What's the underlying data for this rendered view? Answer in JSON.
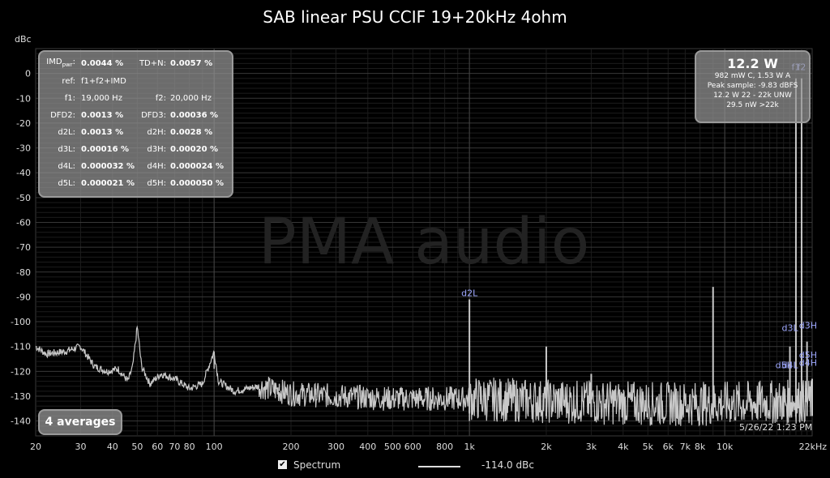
{
  "chart_data": {
    "type": "line",
    "title": "SAB linear PSU CCIF 19+20kHz 4ohm",
    "y_unit": "dBc",
    "watermark": "PMA audio",
    "x_scale": "log",
    "xlim": [
      20,
      22000
    ],
    "ylim": [
      -146,
      10
    ],
    "grid": true,
    "x_ticks": [
      "20",
      "30",
      "40",
      "50",
      "60",
      "70",
      "80",
      "100",
      "200",
      "300",
      "400",
      "500",
      "600",
      "800",
      "1k",
      "2k",
      "3k",
      "4k",
      "5k",
      "6k",
      "7k",
      "8k",
      "10k",
      "22kHz"
    ],
    "x_tick_values": [
      20,
      30,
      40,
      50,
      60,
      70,
      80,
      100,
      200,
      300,
      400,
      500,
      600,
      800,
      1000,
      2000,
      3000,
      4000,
      5000,
      6000,
      7000,
      8000,
      10000,
      22000
    ],
    "y_ticks": [
      "0",
      "-10",
      "-20",
      "-30",
      "-40",
      "-50",
      "-60",
      "-70",
      "-80",
      "-90",
      "-100",
      "-110",
      "-120",
      "-130",
      "-140"
    ],
    "y_tick_values": [
      0,
      -10,
      -20,
      -30,
      -40,
      -50,
      -60,
      -70,
      -80,
      -90,
      -100,
      -110,
      -120,
      -130,
      -140
    ],
    "series": [
      {
        "name": "Spectrum",
        "color": "#c8c8c8",
        "noise_floor": [
          [
            20,
            -110
          ],
          [
            22,
            -113
          ],
          [
            26,
            -112
          ],
          [
            30,
            -110
          ],
          [
            34,
            -118
          ],
          [
            38,
            -120
          ],
          [
            42,
            -119
          ],
          [
            46,
            -124
          ],
          [
            48,
            -118
          ],
          [
            50,
            -102
          ],
          [
            52,
            -118
          ],
          [
            56,
            -125
          ],
          [
            62,
            -121
          ],
          [
            70,
            -123
          ],
          [
            80,
            -127
          ],
          [
            90,
            -125
          ],
          [
            100,
            -112
          ],
          [
            104,
            -124
          ],
          [
            120,
            -128
          ],
          [
            150,
            -126
          ],
          [
            200,
            -129
          ],
          [
            300,
            -130
          ],
          [
            500,
            -131
          ],
          [
            1000,
            -131
          ],
          [
            2000,
            -132
          ],
          [
            5000,
            -133
          ],
          [
            10000,
            -133
          ],
          [
            22000,
            -132
          ]
        ],
        "peaks": [
          [
            1000,
            -91
          ],
          [
            2000,
            -110
          ],
          [
            3000,
            -121
          ],
          [
            9000,
            -86
          ],
          [
            17000,
            -126
          ],
          [
            18000,
            -110
          ],
          [
            19000,
            -2
          ],
          [
            20000,
            -2
          ],
          [
            21000,
            -108
          ],
          [
            22000,
            -123
          ]
        ],
        "spikes": [
          [
            100,
            -119
          ],
          [
            180,
            -125
          ],
          [
            250,
            -127
          ],
          [
            1000,
            -140
          ]
        ]
      }
    ],
    "annotations": [
      {
        "text": "d2L",
        "x": 1000,
        "y": -91
      },
      {
        "text": "f1",
        "x": 19000,
        "y": 0
      },
      {
        "text": "f2",
        "x": 20000,
        "y": 0
      },
      {
        "text": "d3L",
        "x": 18000,
        "y": -105
      },
      {
        "text": "d3H",
        "x": 21000,
        "y": -104
      },
      {
        "text": "d5L",
        "x": 17000,
        "y": -120
      },
      {
        "text": "d4L",
        "x": 18000,
        "y": -120
      },
      {
        "text": "d4H",
        "x": 22000,
        "y": -119
      },
      {
        "text": "d5H",
        "x": 22000,
        "y": -116
      }
    ],
    "legend": {
      "checked": true,
      "name": "Spectrum",
      "level": "-114.0 dBc",
      "placement": "bottom"
    }
  },
  "stats": {
    "imd_lbl": "IMD",
    "imd_sub": "pwr",
    "imd_val": "0.0044 %",
    "tdn_lbl": "TD+N:",
    "tdn_val": "0.0057 %",
    "ref_lbl": "ref:",
    "ref_val": "f1+f2+IMD",
    "f1_lbl": "f1:",
    "f1_val": "19,000 Hz",
    "f2_lbl": "f2:",
    "f2_val": "20,000 Hz",
    "dfd2_lbl": "DFD2:",
    "dfd2_val": "0.0013 %",
    "dfd3_lbl": "DFD3:",
    "dfd3_val": "0.00036 %",
    "d2l_lbl": "d2L:",
    "d2l_val": "0.0013 %",
    "d2h_lbl": "d2H:",
    "d2h_val": "0.0028 %",
    "d3l_lbl": "d3L:",
    "d3l_val": "0.00016 %",
    "d3h_lbl": "d3H:",
    "d3h_val": "0.00020 %",
    "d4l_lbl": "d4L:",
    "d4l_val": "0.000032 %",
    "d4h_lbl": "d4H:",
    "d4h_val": "0.000024 %",
    "d5l_lbl": "d5L:",
    "d5l_val": "0.000021 %",
    "d5h_lbl": "d5H:",
    "d5h_val": "0.000050 %"
  },
  "power": {
    "big": "12.2 W",
    "line1": "982 mW C, 1.53 W A",
    "line2": "Peak sample: -9.83 dBFS",
    "line3": "12.2 W 22 - 22k UNW",
    "line4": "29.5 nW >22k"
  },
  "averages": "4 averages",
  "timestamp": "5/26/22 1:23 PM"
}
